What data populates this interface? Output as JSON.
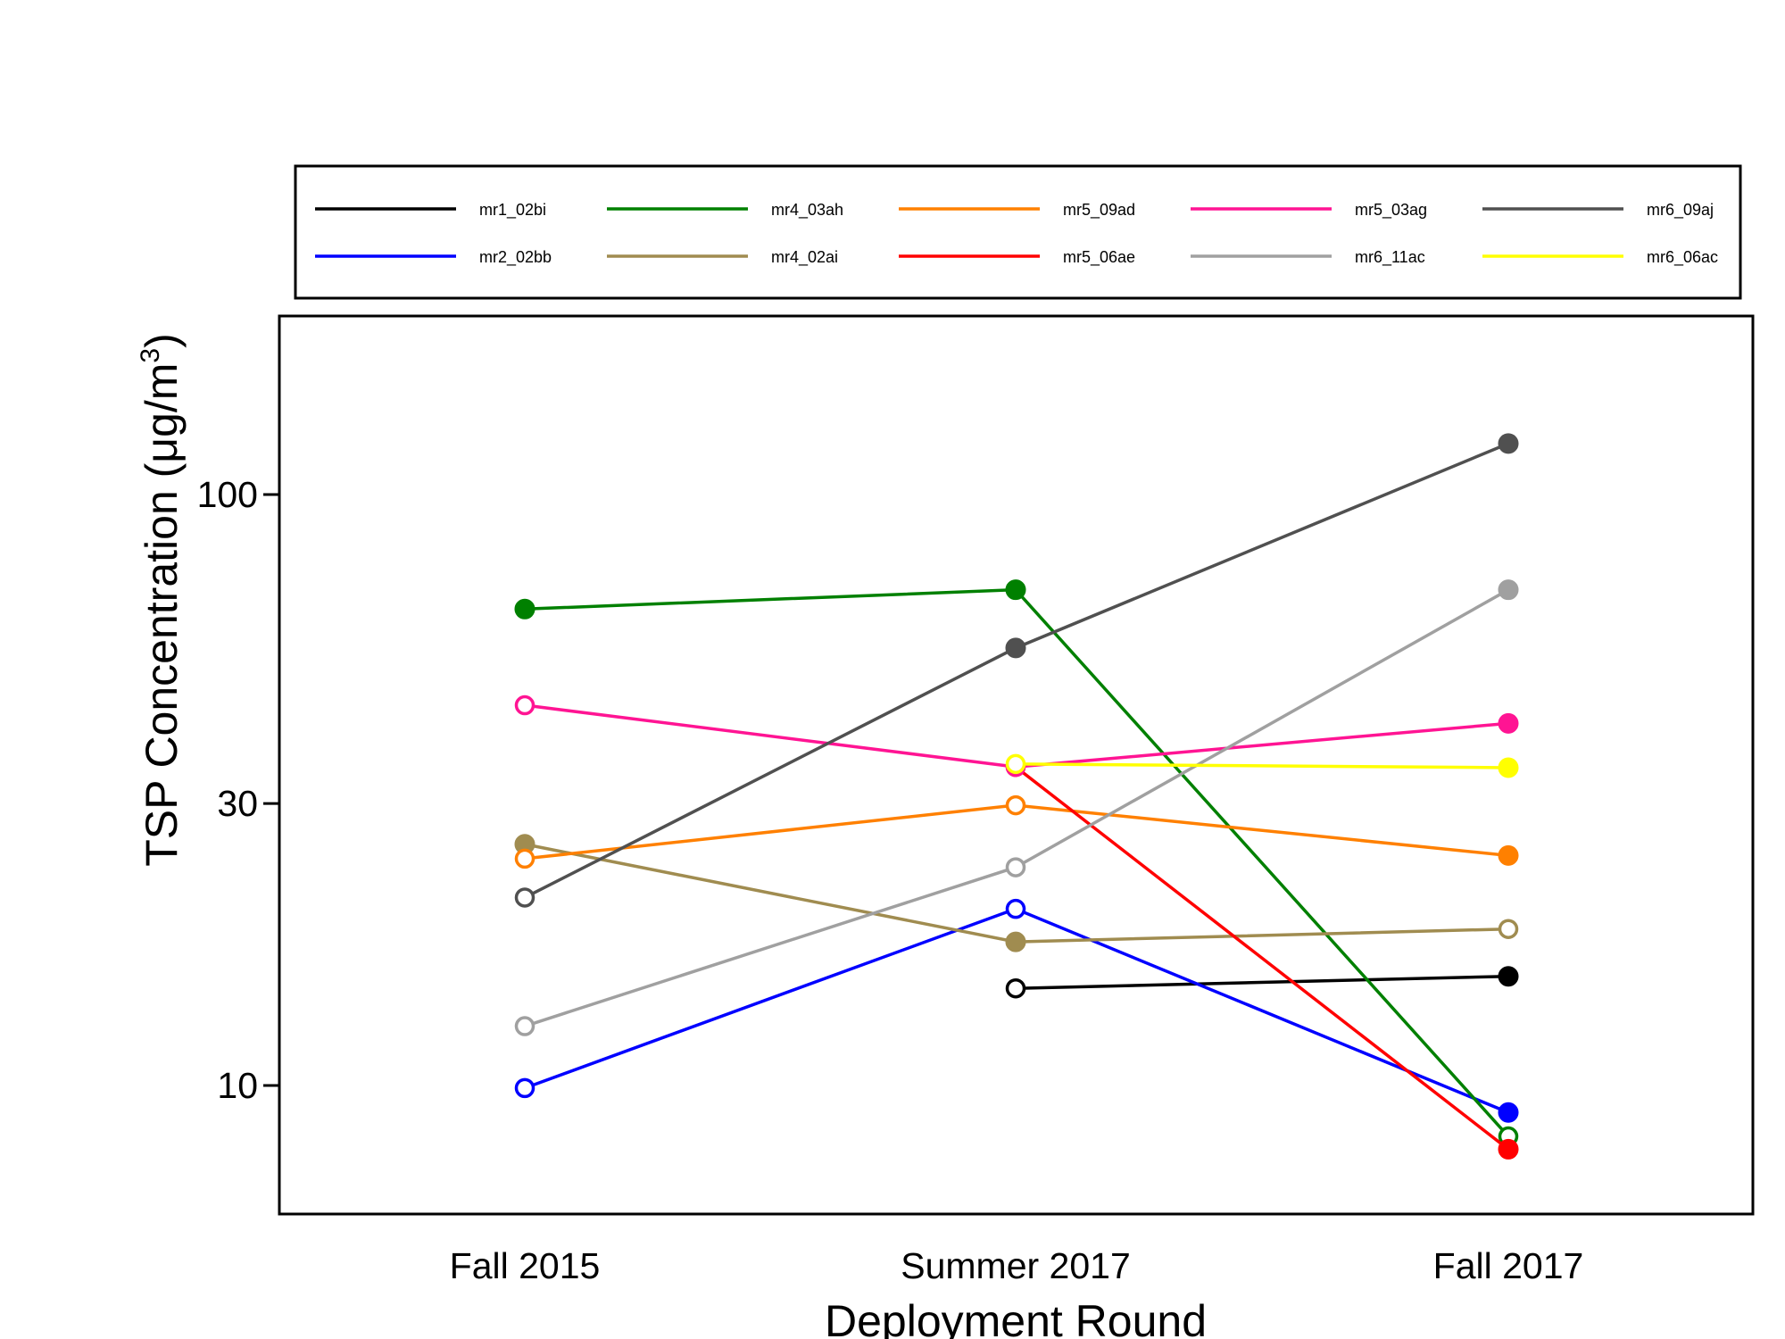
{
  "chart_data": {
    "type": "line",
    "xlabel": "Deployment Round",
    "ylabel": "TSP Concentration (μg/m",
    "ylabel_sup": "3",
    "ylabel_close": ")",
    "yscale": "log",
    "ylim": [
      7.5,
      150
    ],
    "yticks": [
      10,
      30,
      100
    ],
    "ytick_labels": [
      "10",
      "30",
      "100"
    ],
    "categories": [
      "Fall 2015",
      "Summer 2017",
      "Fall 2017"
    ],
    "grid": false,
    "legend": {
      "placement": "top",
      "columns": 5
    },
    "series": [
      {
        "name": "mr1_02bi",
        "color": "#000000",
        "values": [
          null,
          14.6,
          15.3
        ],
        "markers": [
          "open",
          "open",
          "filled"
        ]
      },
      {
        "name": "mr2_02bb",
        "color": "#0000FF",
        "values": [
          9.9,
          19.9,
          9.0
        ],
        "markers": [
          "open",
          "open",
          "filled"
        ]
      },
      {
        "name": "mr4_03ah",
        "color": "#008000",
        "values": [
          64,
          69,
          8.2
        ],
        "markers": [
          "filled",
          "filled",
          "open"
        ]
      },
      {
        "name": "mr4_02ai",
        "color": "#A08C50",
        "values": [
          25.6,
          17.5,
          18.4
        ],
        "markers": [
          "filled",
          "filled",
          "open"
        ]
      },
      {
        "name": "mr5_09ad",
        "color": "#FF8000",
        "values": [
          24.2,
          29.8,
          24.5
        ],
        "markers": [
          "open",
          "open",
          "filled"
        ]
      },
      {
        "name": "mr5_06ae",
        "color": "#FF0000",
        "values": [
          null,
          34.6,
          7.8
        ],
        "markers": [
          "open",
          "open",
          "filled"
        ]
      },
      {
        "name": "mr5_03ag",
        "color": "#FF1493",
        "values": [
          44,
          34.6,
          41
        ],
        "markers": [
          "open",
          "open",
          "filled"
        ]
      },
      {
        "name": "mr6_11ac",
        "color": "#A0A0A0",
        "values": [
          12.6,
          23.4,
          69
        ],
        "markers": [
          "open",
          "open",
          "filled"
        ]
      },
      {
        "name": "mr6_09aj",
        "color": "#505050",
        "values": [
          20.8,
          55,
          122
        ],
        "markers": [
          "open",
          "filled",
          "filled"
        ]
      },
      {
        "name": "mr6_06ac",
        "color": "#FFFF00",
        "values": [
          null,
          35,
          34.5
        ],
        "markers": [
          "open",
          "open",
          "filled"
        ]
      }
    ]
  }
}
